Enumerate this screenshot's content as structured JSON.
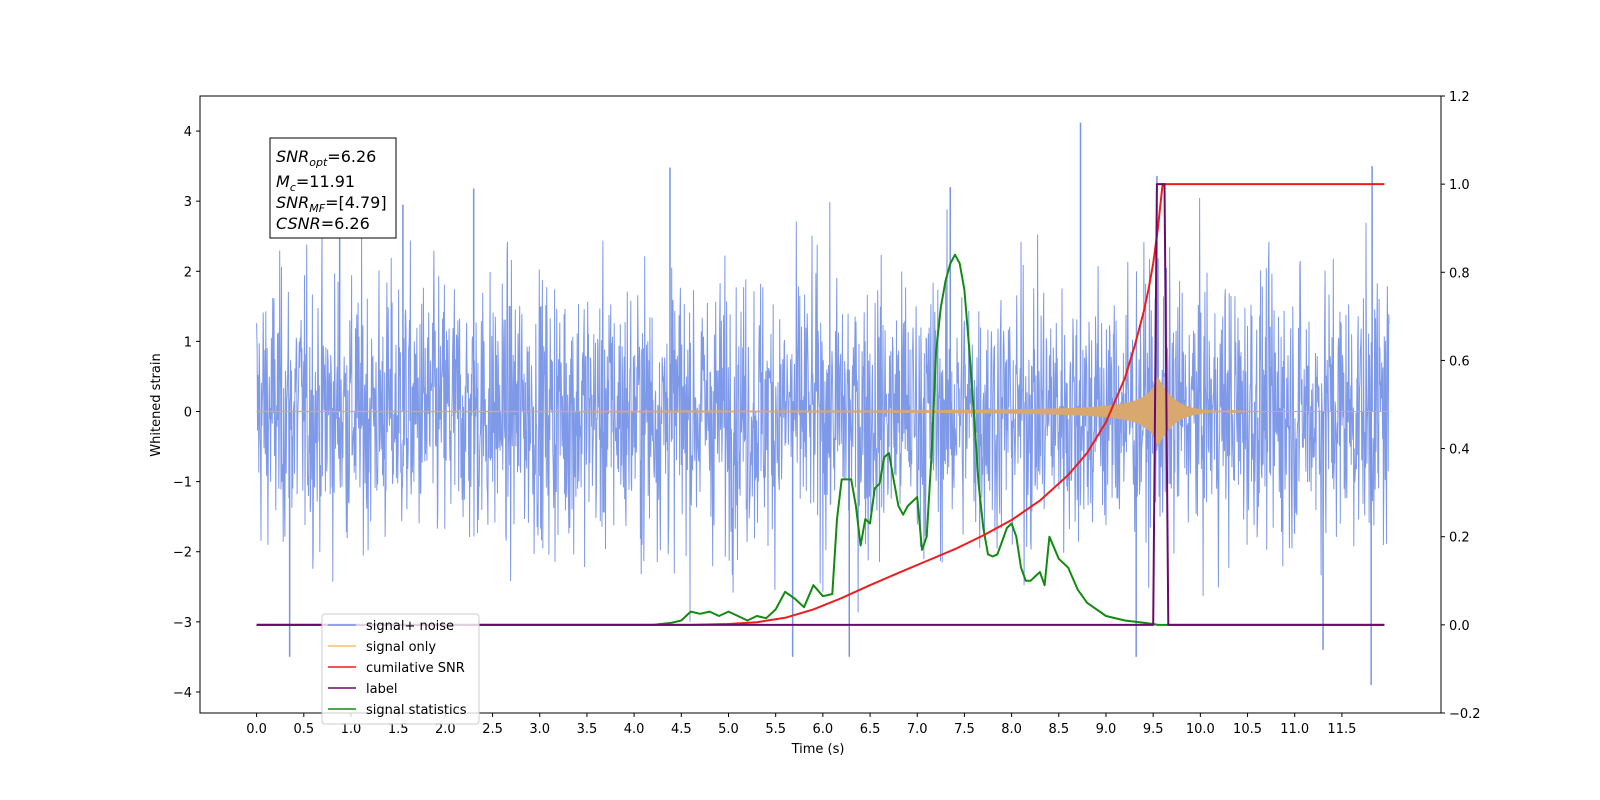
{
  "chart_data": {
    "type": "line",
    "xlabel": "Time (s)",
    "ylabel": "Whitened strain",
    "xlim": [
      -0.6,
      12.55
    ],
    "ylim": [
      -4.3,
      4.5
    ],
    "y2lim": [
      -0.2,
      1.2
    ],
    "x_ticks": [
      "0.0",
      "0.5",
      "1.0",
      "1.5",
      "2.0",
      "2.5",
      "3.0",
      "3.5",
      "4.0",
      "4.5",
      "5.0",
      "5.5",
      "6.0",
      "6.5",
      "7.0",
      "7.5",
      "8.0",
      "8.5",
      "9.0",
      "9.5",
      "10.0",
      "10.5",
      "11.0",
      "11.5"
    ],
    "y_ticks": [
      "4",
      "3",
      "2",
      "1",
      "0",
      "−1",
      "−2",
      "−3",
      "−4"
    ],
    "y2_ticks": [
      "1.2",
      "1.0",
      "0.8",
      "0.6",
      "0.4",
      "0.2",
      "0.0",
      "−0.2"
    ],
    "info_box": {
      "snr_opt": {
        "base": "SNR",
        "sub": "opt",
        "value": "=6.26"
      },
      "mc": {
        "base": "M",
        "sub": "c",
        "value": "=11.91"
      },
      "snr_mf": {
        "base": "SNR",
        "sub": "MF",
        "value": "=[4.79]"
      },
      "csnr": {
        "base": "CSNR",
        "value": "=6.26"
      }
    },
    "legend": {
      "position": "lower-left"
    },
    "series": [
      {
        "name": "signal+ noise",
        "color": "#7893e8",
        "axis": "left",
        "kind": "noise",
        "t_start": 0,
        "t_end": 12.0,
        "amplitude_range": [
          -3.9,
          4.12
        ]
      },
      {
        "name": "signal only",
        "color": "#f6c26b",
        "axis": "left",
        "kind": "chirp",
        "merger_time": 9.55,
        "peak_amplitude": 0.5
      },
      {
        "name": "cumilative SNR",
        "color": "#ee1c1c",
        "axis": "right",
        "x": [
          0,
          4.6,
          5.0,
          5.3,
          5.6,
          5.9,
          6.2,
          6.5,
          6.8,
          7.1,
          7.4,
          7.7,
          8.0,
          8.3,
          8.6,
          8.8,
          9.0,
          9.1,
          9.2,
          9.3,
          9.4,
          9.45,
          9.5,
          9.55,
          9.6,
          11.95
        ],
        "y": [
          0,
          0,
          0.002,
          0.006,
          0.016,
          0.035,
          0.061,
          0.09,
          0.118,
          0.145,
          0.172,
          0.203,
          0.238,
          0.282,
          0.34,
          0.39,
          0.46,
          0.51,
          0.56,
          0.63,
          0.71,
          0.76,
          0.82,
          0.9,
          1.0,
          1.0
        ]
      },
      {
        "name": "label",
        "color": "#6a0a6a",
        "axis": "right",
        "x": [
          0,
          9.5,
          9.54,
          9.58,
          9.62,
          9.66,
          9.7,
          11.95
        ],
        "y": [
          0,
          0,
          1.0,
          1.0,
          1.0,
          0,
          0,
          0
        ]
      },
      {
        "name": "signal statistics",
        "color": "#138a13",
        "axis": "right",
        "x": [
          0,
          4.2,
          4.4,
          4.5,
          4.6,
          4.7,
          4.8,
          4.9,
          5.0,
          5.1,
          5.2,
          5.3,
          5.4,
          5.5,
          5.6,
          5.7,
          5.8,
          5.9,
          6.0,
          6.1,
          6.15,
          6.2,
          6.3,
          6.35,
          6.4,
          6.45,
          6.5,
          6.55,
          6.6,
          6.65,
          6.7,
          6.75,
          6.8,
          6.85,
          6.9,
          6.95,
          7.0,
          7.05,
          7.1,
          7.15,
          7.2,
          7.25,
          7.3,
          7.35,
          7.4,
          7.45,
          7.5,
          7.55,
          7.6,
          7.65,
          7.7,
          7.75,
          7.8,
          7.85,
          7.9,
          7.95,
          8.0,
          8.05,
          8.1,
          8.15,
          8.2,
          8.25,
          8.3,
          8.35,
          8.4,
          8.5,
          8.6,
          8.7,
          8.8,
          9.0,
          9.2,
          9.4,
          9.5,
          9.55,
          9.6,
          9.7,
          10.0,
          11.95
        ],
        "y": [
          0,
          0,
          0.005,
          0.01,
          0.03,
          0.025,
          0.03,
          0.02,
          0.03,
          0.02,
          0.01,
          0.02,
          0.015,
          0.035,
          0.075,
          0.06,
          0.04,
          0.09,
          0.065,
          0.07,
          0.24,
          0.33,
          0.33,
          0.27,
          0.18,
          0.24,
          0.23,
          0.31,
          0.32,
          0.38,
          0.39,
          0.33,
          0.27,
          0.25,
          0.27,
          0.28,
          0.29,
          0.17,
          0.2,
          0.38,
          0.62,
          0.72,
          0.78,
          0.82,
          0.84,
          0.82,
          0.76,
          0.63,
          0.48,
          0.32,
          0.22,
          0.16,
          0.155,
          0.16,
          0.19,
          0.22,
          0.23,
          0.2,
          0.13,
          0.1,
          0.1,
          0.11,
          0.12,
          0.09,
          0.2,
          0.15,
          0.13,
          0.08,
          0.05,
          0.02,
          0.01,
          0.005,
          0.002,
          0.0,
          0.0,
          0.0,
          0.0,
          0.0
        ]
      }
    ]
  }
}
